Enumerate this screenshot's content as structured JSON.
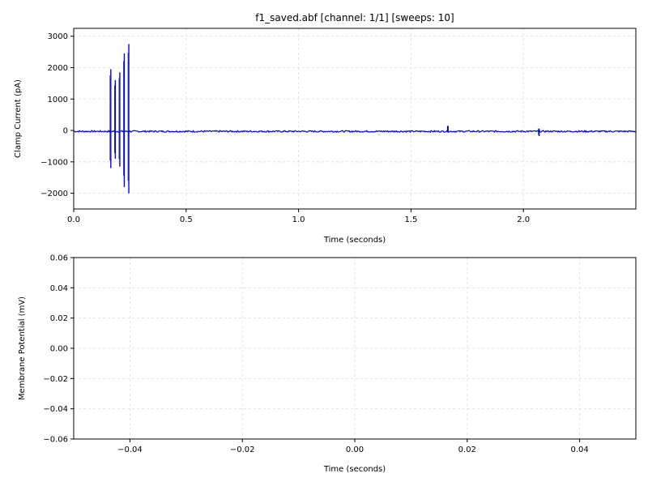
{
  "chart_data": [
    {
      "type": "line",
      "title": "f1_saved.abf [channel: 1/1] [sweeps: 10]",
      "xlabel": "Time (seconds)",
      "ylabel": "Clamp Current (pA)",
      "xlim": [
        0,
        2.5
      ],
      "ylim": [
        -2500,
        3250
      ],
      "xticks": [
        0.0,
        0.5,
        1.0,
        1.5,
        2.0
      ],
      "xtick_labels": [
        "0.0",
        "0.5",
        "1.0",
        "1.5",
        "2.0"
      ],
      "yticks": [
        -2000,
        -1000,
        0,
        1000,
        2000,
        3000
      ],
      "ytick_labels": [
        "−2000",
        "−1000",
        "0",
        "1000",
        "2000",
        "3000"
      ],
      "grid": true,
      "series_color": "#0000ff",
      "baseline": -30,
      "spikes": [
        {
          "x": 0.165,
          "max": 1950,
          "min": -1200
        },
        {
          "x": 0.185,
          "max": 1600,
          "min": -900
        },
        {
          "x": 0.205,
          "max": 1850,
          "min": -1150
        },
        {
          "x": 0.225,
          "max": 2450,
          "min": -1800
        },
        {
          "x": 0.245,
          "max": 2750,
          "min": -2000
        },
        {
          "x": 1.665,
          "max": 150,
          "min": -60
        },
        {
          "x": 2.07,
          "max": 60,
          "min": -180
        }
      ]
    },
    {
      "type": "line",
      "title": "",
      "xlabel": "Time (seconds)",
      "ylabel": "Membrane Potential (mV)",
      "xlim": [
        -0.05,
        0.05
      ],
      "ylim": [
        -0.06,
        0.06
      ],
      "xticks": [
        -0.04,
        -0.02,
        0.0,
        0.02,
        0.04
      ],
      "xtick_labels": [
        "−0.04",
        "−0.02",
        "0.00",
        "0.02",
        "0.04"
      ],
      "yticks": [
        -0.06,
        -0.04,
        -0.02,
        0.0,
        0.02,
        0.04,
        0.06
      ],
      "ytick_labels": [
        "−0.06",
        "−0.04",
        "−0.02",
        "0.00",
        "0.02",
        "0.04",
        "0.06"
      ],
      "grid": true
    }
  ]
}
